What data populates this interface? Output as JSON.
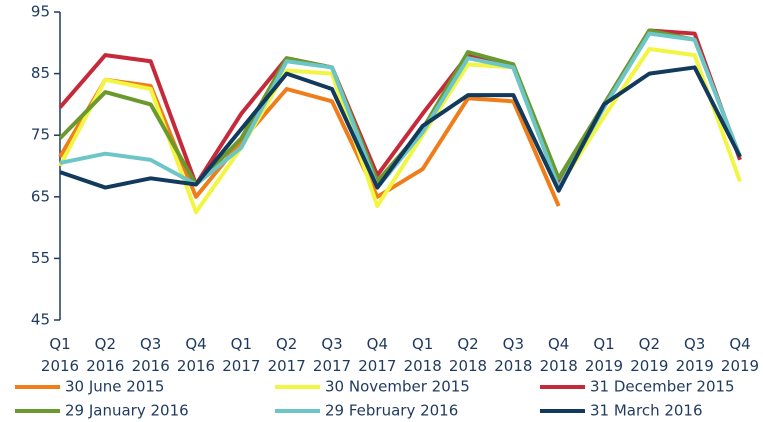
{
  "chart_data": {
    "type": "line",
    "categories": [
      "Q1 2016",
      "Q2 2016",
      "Q3 2016",
      "Q4 2016",
      "Q1 2017",
      "Q2 2017",
      "Q3 2017",
      "Q4 2017",
      "Q1 2018",
      "Q2 2018",
      "Q3 2018",
      "Q4 2018",
      "Q1 2019",
      "Q2 2019",
      "Q3 2019",
      "Q4 2019"
    ],
    "series": [
      {
        "name": "30 June 2015",
        "color": "#ee7d1a",
        "values": [
          71.5,
          84,
          83,
          65,
          74,
          82.5,
          80.5,
          65,
          69.5,
          81,
          80.5,
          63.5,
          null,
          null,
          null,
          null
        ]
      },
      {
        "name": "30 November 2015",
        "color": "#f2f542",
        "values": [
          70,
          84,
          82.5,
          62.5,
          73,
          85.5,
          85,
          63.5,
          75,
          86.5,
          86,
          66.5,
          78,
          89,
          88,
          67.5
        ]
      },
      {
        "name": "31 December 2015",
        "color": "#c62a3a",
        "values": [
          79.5,
          88,
          87,
          67,
          78.5,
          87.5,
          86,
          68.5,
          78.5,
          88,
          86,
          67.5,
          80,
          92,
          91.5,
          71
        ]
      },
      {
        "name": "29 January 2016",
        "color": "#6a9a2e",
        "values": [
          74.5,
          82,
          80,
          67,
          74.5,
          87.5,
          86,
          67.5,
          76,
          88.5,
          86.5,
          68,
          80,
          92,
          90.5,
          71.5
        ]
      },
      {
        "name": "29 February 2016",
        "color": "#6cc6c8",
        "values": [
          70.5,
          72,
          71,
          67,
          73,
          87,
          86,
          66.5,
          75.5,
          87.5,
          86,
          66.5,
          79.5,
          91.5,
          90.5,
          71.5
        ]
      },
      {
        "name": "31 March 2016",
        "color": "#123a5c",
        "values": [
          69,
          66.5,
          68,
          67,
          76,
          85,
          82.5,
          66.5,
          76.5,
          81.5,
          81.5,
          66,
          80,
          85,
          86,
          71.5
        ]
      }
    ],
    "ylim": [
      45,
      95
    ],
    "yticks": [
      45,
      55,
      65,
      75,
      85,
      95
    ],
    "grid": false,
    "legend": "bottom"
  }
}
